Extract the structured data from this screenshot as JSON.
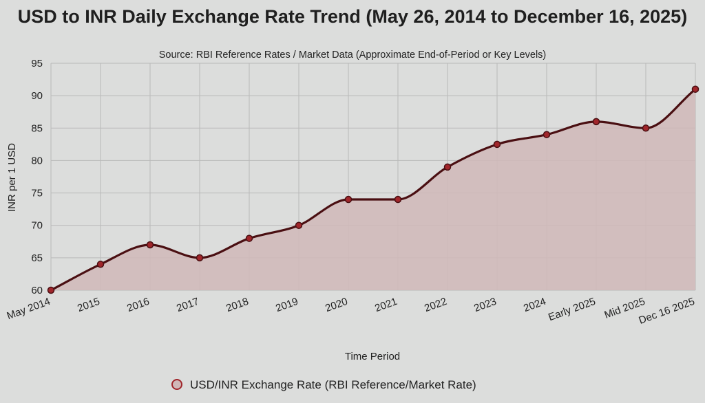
{
  "chart_data": {
    "type": "line",
    "title": "USD to INR Daily Exchange Rate Trend (May 26, 2014 to December 16, 2025)",
    "subtitle": "Source: RBI Reference Rates / Market Data (Approximate End-of-Period or Key Levels)",
    "xlabel": "Time Period",
    "ylabel": "INR per 1 USD",
    "ylim": [
      60,
      95
    ],
    "yticks": [
      60,
      65,
      70,
      75,
      80,
      85,
      90,
      95
    ],
    "grid": true,
    "legend_position": "bottom-center",
    "categories": [
      "May 2014",
      "2015",
      "2016",
      "2017",
      "2018",
      "2019",
      "2020",
      "2021",
      "2022",
      "2023",
      "2024",
      "Early 2025",
      "Mid 2025",
      "Dec 16 2025"
    ],
    "series": [
      {
        "name": "USD/INR Exchange Rate (RBI Reference/Market Rate)",
        "values": [
          60,
          64,
          67,
          65,
          68,
          70,
          74,
          74,
          79,
          82.5,
          84,
          86,
          85,
          91
        ],
        "line_color": "#4a0f12",
        "point_color": "#a0262b",
        "fill_color": "#d0b8b8"
      }
    ]
  }
}
